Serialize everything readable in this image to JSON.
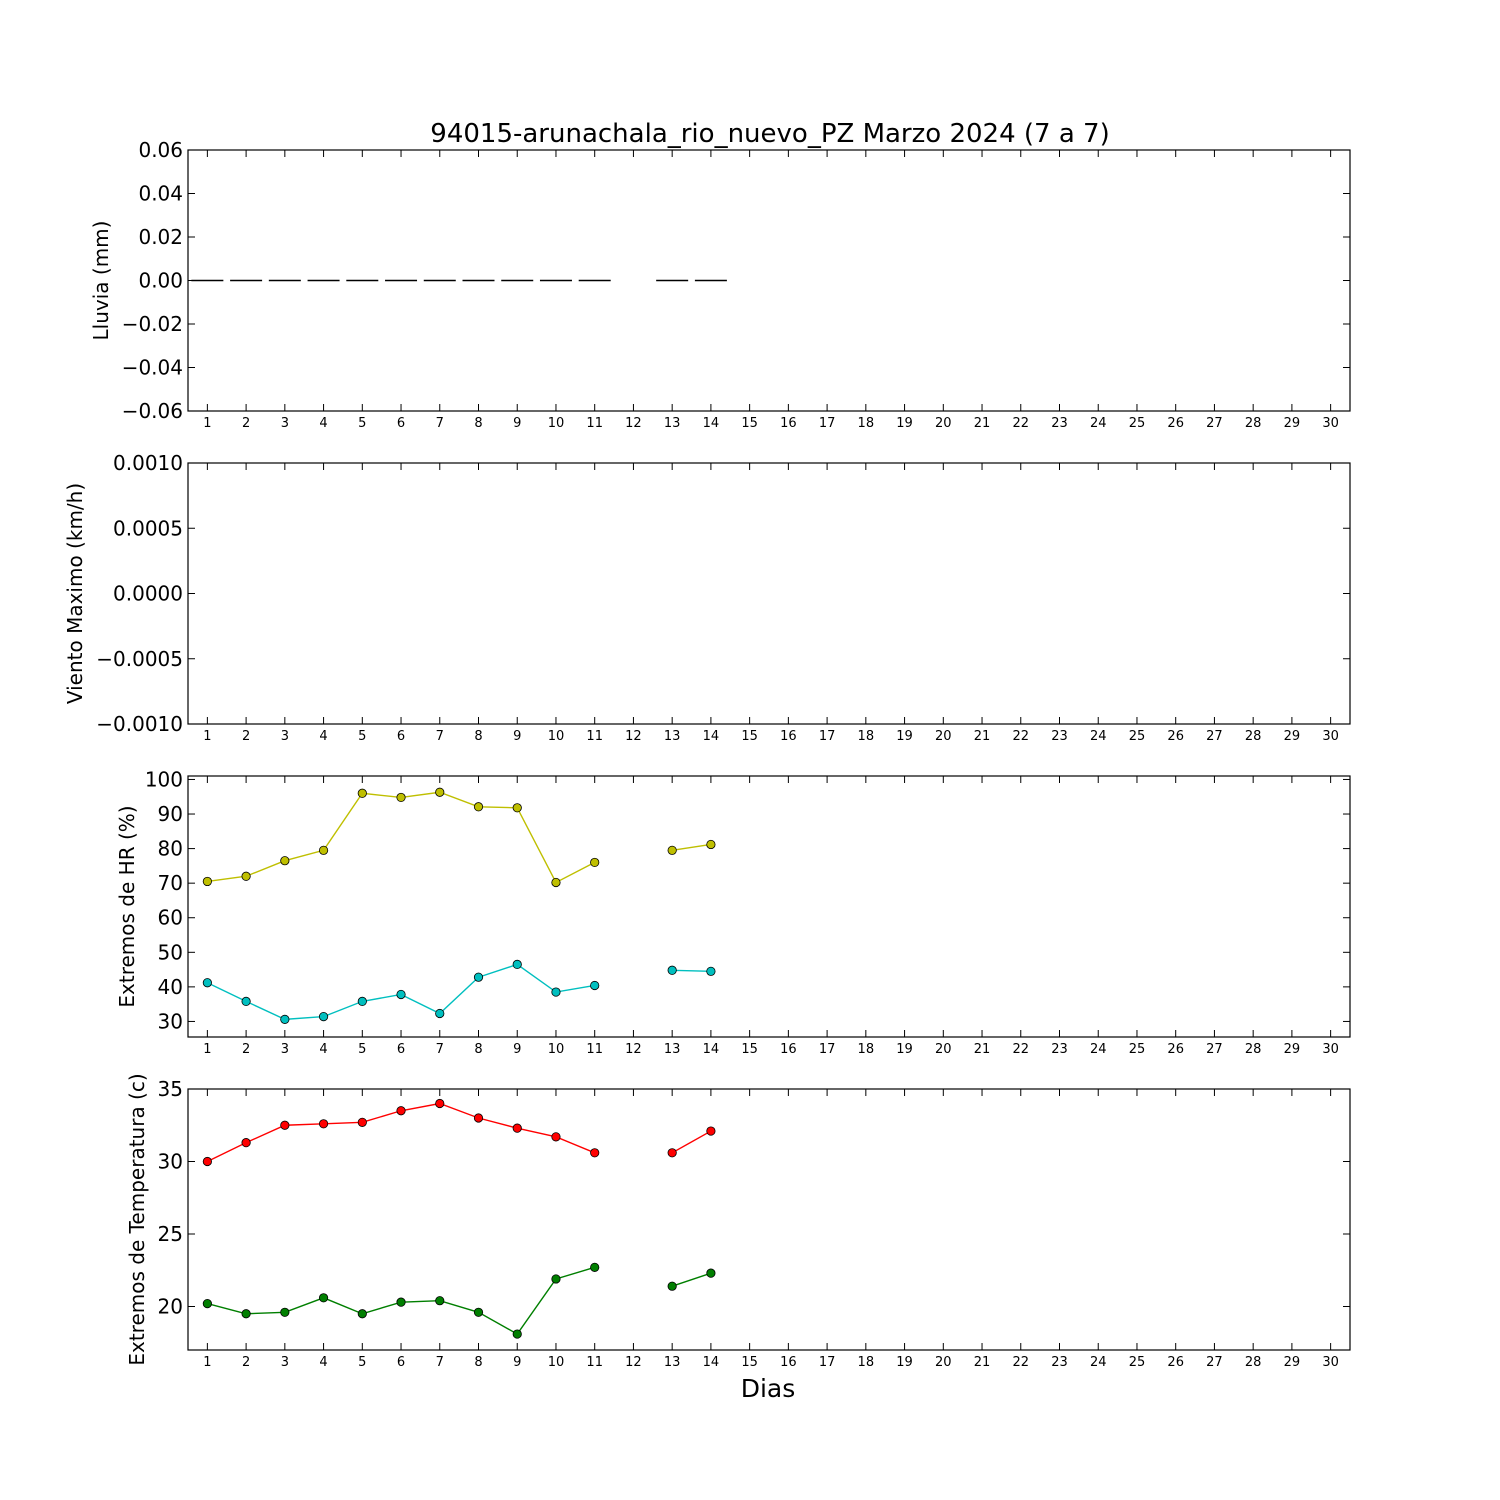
{
  "title": "94015-arunachala_rio_nuevo_PZ Marzo 2024  (7 a 7)",
  "xlabel": "Dias",
  "colors": {
    "rain": "#000000",
    "hr_max": "#bfbf00",
    "hr_min": "#00bfbf",
    "temp_max": "#ff0000",
    "temp_min": "#007f00"
  },
  "chart_data": [
    {
      "type": "bar",
      "ylabel": "Lluvia (mm)",
      "ylim": [
        -0.06,
        0.06
      ],
      "yticks": [
        "0.06",
        "0.04",
        "0.02",
        "0.00",
        "−0.02",
        "−0.04",
        "−0.06"
      ],
      "ytick_values": [
        0.06,
        0.04,
        0.02,
        0.0,
        -0.02,
        -0.04,
        -0.06
      ],
      "xlim": [
        0.5,
        30.5
      ],
      "xticks": [
        "1",
        "2",
        "3",
        "4",
        "5",
        "6",
        "7",
        "8",
        "9",
        "10",
        "11",
        "12",
        "13",
        "14",
        "15",
        "16",
        "17",
        "18",
        "19",
        "20",
        "21",
        "22",
        "23",
        "24",
        "25",
        "26",
        "27",
        "28",
        "29",
        "30"
      ],
      "x": [
        1,
        2,
        3,
        4,
        5,
        6,
        7,
        8,
        9,
        10,
        11,
        12,
        13,
        14
      ],
      "values": [
        0,
        0,
        0,
        0,
        0,
        0,
        0,
        0,
        0,
        0,
        0,
        null,
        0,
        0
      ],
      "series": [
        {
          "values": [
            0,
            0,
            0,
            0,
            0,
            0,
            0,
            0,
            0,
            0,
            0,
            null,
            0,
            0
          ],
          "color": "#000000"
        }
      ]
    },
    {
      "type": "line",
      "ylabel": "Viento Maximo (km/h)",
      "ylim": [
        -0.001,
        0.001
      ],
      "yticks": [
        "0.0010",
        "0.0005",
        "0.0000",
        "−0.0005",
        "−0.0010"
      ],
      "ytick_values": [
        0.001,
        0.0005,
        0.0,
        -0.0005,
        -0.001
      ],
      "xlim": [
        0.5,
        30.5
      ],
      "xticks": [
        "1",
        "2",
        "3",
        "4",
        "5",
        "6",
        "7",
        "8",
        "9",
        "10",
        "11",
        "12",
        "13",
        "14",
        "15",
        "16",
        "17",
        "18",
        "19",
        "20",
        "21",
        "22",
        "23",
        "24",
        "25",
        "26",
        "27",
        "28",
        "29",
        "30"
      ],
      "x": [],
      "series": []
    },
    {
      "type": "line",
      "ylabel": "Extremos de HR (%)",
      "ylim": [
        25.5,
        101
      ],
      "yticks": [
        "100",
        "90",
        "80",
        "70",
        "60",
        "50",
        "40",
        "30"
      ],
      "ytick_values": [
        100,
        90,
        80,
        70,
        60,
        50,
        40,
        30
      ],
      "xlim": [
        0.5,
        30.5
      ],
      "xticks": [
        "1",
        "2",
        "3",
        "4",
        "5",
        "6",
        "7",
        "8",
        "9",
        "10",
        "11",
        "12",
        "13",
        "14",
        "15",
        "16",
        "17",
        "18",
        "19",
        "20",
        "21",
        "22",
        "23",
        "24",
        "25",
        "26",
        "27",
        "28",
        "29",
        "30"
      ],
      "x": [
        1,
        2,
        3,
        4,
        5,
        6,
        7,
        8,
        9,
        10,
        11,
        12,
        13,
        14
      ],
      "series": [
        {
          "values": [
            70.5,
            72,
            76.5,
            79.5,
            96,
            94.8,
            96.3,
            92.1,
            91.8,
            70.2,
            76,
            null,
            79.5,
            81.2
          ],
          "color": "#bfbf00"
        },
        {
          "values": [
            41.2,
            35.8,
            30.6,
            31.4,
            35.8,
            37.8,
            32.3,
            42.8,
            46.5,
            38.5,
            40.4,
            null,
            44.8,
            44.5
          ],
          "color": "#00bfbf"
        }
      ]
    },
    {
      "type": "line",
      "ylabel": "Extremos de Temperatura (c)",
      "ylim": [
        17,
        35
      ],
      "yticks": [
        "35",
        "30",
        "25",
        "20"
      ],
      "ytick_values": [
        35,
        30,
        25,
        20
      ],
      "xlim": [
        0.5,
        30.5
      ],
      "xticks": [
        "1",
        "2",
        "3",
        "4",
        "5",
        "6",
        "7",
        "8",
        "9",
        "10",
        "11",
        "12",
        "13",
        "14",
        "15",
        "16",
        "17",
        "18",
        "19",
        "20",
        "21",
        "22",
        "23",
        "24",
        "25",
        "26",
        "27",
        "28",
        "29",
        "30"
      ],
      "x": [
        1,
        2,
        3,
        4,
        5,
        6,
        7,
        8,
        9,
        10,
        11,
        12,
        13,
        14
      ],
      "series": [
        {
          "values": [
            30.0,
            31.3,
            32.5,
            32.6,
            32.7,
            33.5,
            34.0,
            33.0,
            32.3,
            31.7,
            30.6,
            null,
            30.6,
            32.1
          ],
          "color": "#ff0000"
        },
        {
          "values": [
            20.2,
            19.5,
            19.6,
            20.6,
            19.5,
            20.3,
            20.4,
            19.6,
            18.1,
            21.9,
            22.7,
            null,
            21.4,
            22.3
          ],
          "color": "#007f00"
        }
      ]
    }
  ]
}
